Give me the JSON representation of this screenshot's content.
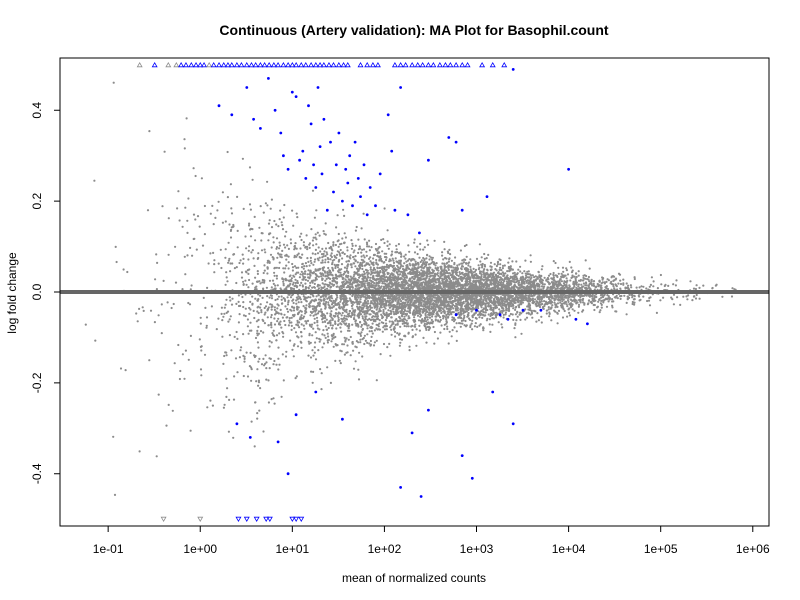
{
  "chart_data": {
    "type": "scatter",
    "title": "Continuous (Artery validation): MA Plot for Basophil.count",
    "xlabel": "mean of normalized counts",
    "ylabel": "log fold change",
    "x_scale": "log10",
    "xlim": [
      0.03,
      1500000
    ],
    "ylim": [
      -0.515,
      0.515
    ],
    "x_ticks": [
      {
        "value": 0.1,
        "label": "1e-01"
      },
      {
        "value": 1,
        "label": "1e+00"
      },
      {
        "value": 10,
        "label": "1e+01"
      },
      {
        "value": 100,
        "label": "1e+02"
      },
      {
        "value": 1000,
        "label": "1e+03"
      },
      {
        "value": 10000,
        "label": "1e+04"
      },
      {
        "value": 100000,
        "label": "1e+05"
      },
      {
        "value": 1000000,
        "label": "1e+06"
      }
    ],
    "y_ticks": [
      {
        "value": -0.4,
        "label": "-0.4"
      },
      {
        "value": -0.2,
        "label": "-0.2"
      },
      {
        "value": 0.0,
        "label": "0.0"
      },
      {
        "value": 0.2,
        "label": "0.2"
      },
      {
        "value": 0.4,
        "label": "0.4"
      }
    ],
    "reference_line": {
      "y": 0,
      "color": "#666666"
    },
    "colors": {
      "non_significant": "#8c8c8c",
      "significant": "#0000ff"
    },
    "series": [
      {
        "color": "#0000ff",
        "points": [
          [
            1.6,
            0.41
          ],
          [
            2.2,
            0.39
          ],
          [
            3.2,
            0.45
          ],
          [
            3.8,
            0.38
          ],
          [
            4.5,
            0.36
          ],
          [
            5.5,
            0.47
          ],
          [
            6.5,
            0.4
          ],
          [
            7.5,
            0.35
          ],
          [
            8.0,
            0.3
          ],
          [
            9.0,
            0.27
          ],
          [
            10.0,
            0.44
          ],
          [
            11.0,
            0.43
          ],
          [
            12.0,
            0.29
          ],
          [
            13.0,
            0.31
          ],
          [
            14.0,
            0.25
          ],
          [
            15.0,
            0.41
          ],
          [
            16.0,
            0.37
          ],
          [
            17.0,
            0.28
          ],
          [
            18.0,
            0.23
          ],
          [
            19.0,
            0.45
          ],
          [
            20.0,
            0.32
          ],
          [
            21.0,
            0.26
          ],
          [
            22.0,
            0.38
          ],
          [
            24.0,
            0.18
          ],
          [
            26.0,
            0.33
          ],
          [
            28.0,
            0.22
          ],
          [
            30.0,
            0.28
          ],
          [
            32.0,
            0.35
          ],
          [
            35.0,
            0.2
          ],
          [
            38.0,
            0.27
          ],
          [
            40.0,
            0.24
          ],
          [
            42.0,
            0.3
          ],
          [
            45.0,
            0.19
          ],
          [
            48.0,
            0.33
          ],
          [
            52.0,
            0.25
          ],
          [
            55.0,
            0.21
          ],
          [
            60.0,
            0.28
          ],
          [
            65.0,
            0.17
          ],
          [
            70.0,
            0.23
          ],
          [
            80.0,
            0.19
          ],
          [
            90.0,
            0.26
          ],
          [
            110.0,
            0.39
          ],
          [
            120.0,
            0.31
          ],
          [
            130.0,
            0.18
          ],
          [
            150.0,
            0.45
          ],
          [
            180.0,
            0.17
          ],
          [
            240.0,
            0.13
          ],
          [
            300.0,
            0.29
          ],
          [
            500.0,
            0.34
          ],
          [
            600.0,
            0.33
          ],
          [
            700.0,
            0.18
          ],
          [
            1300.0,
            0.21
          ],
          [
            2500.0,
            0.49
          ],
          [
            10000.0,
            0.27
          ],
          [
            600.0,
            -0.05
          ],
          [
            1000.0,
            -0.04
          ],
          [
            1800.0,
            -0.05
          ],
          [
            2200.0,
            -0.06
          ],
          [
            3200.0,
            -0.04
          ],
          [
            5000.0,
            -0.04
          ],
          [
            12000.0,
            -0.06
          ],
          [
            16000.0,
            -0.07
          ],
          [
            2.5,
            -0.29
          ],
          [
            3.5,
            -0.32
          ],
          [
            7.0,
            -0.33
          ],
          [
            9.0,
            -0.4
          ],
          [
            11.0,
            -0.27
          ],
          [
            18.0,
            -0.22
          ],
          [
            35.0,
            -0.28
          ],
          [
            150.0,
            -0.43
          ],
          [
            200.0,
            -0.31
          ],
          [
            250.0,
            -0.45
          ],
          [
            300.0,
            -0.26
          ],
          [
            700.0,
            -0.36
          ],
          [
            900.0,
            -0.41
          ],
          [
            1500.0,
            -0.22
          ],
          [
            2500.0,
            -0.29
          ]
        ]
      }
    ],
    "clipped_markers": {
      "top": [
        {
          "x": 0.22,
          "color": "#8c8c8c"
        },
        {
          "x": 0.32,
          "color": "#0000ff"
        },
        {
          "x": 0.45,
          "color": "#8c8c8c"
        },
        {
          "x": 0.55,
          "color": "#8c8c8c"
        },
        {
          "x": 0.62,
          "color": "#0000ff"
        },
        {
          "x": 0.7,
          "color": "#0000ff"
        },
        {
          "x": 0.8,
          "color": "#0000ff"
        },
        {
          "x": 0.9,
          "color": "#0000ff"
        },
        {
          "x": 1.0,
          "color": "#0000ff"
        },
        {
          "x": 1.1,
          "color": "#0000ff"
        },
        {
          "x": 1.25,
          "color": "#8c8c8c"
        },
        {
          "x": 1.4,
          "color": "#0000ff"
        },
        {
          "x": 1.6,
          "color": "#0000ff"
        },
        {
          "x": 1.8,
          "color": "#0000ff"
        },
        {
          "x": 2.0,
          "color": "#0000ff"
        },
        {
          "x": 2.2,
          "color": "#0000ff"
        },
        {
          "x": 2.5,
          "color": "#0000ff"
        },
        {
          "x": 2.8,
          "color": "#0000ff"
        },
        {
          "x": 3.2,
          "color": "#0000ff"
        },
        {
          "x": 3.6,
          "color": "#0000ff"
        },
        {
          "x": 4.0,
          "color": "#0000ff"
        },
        {
          "x": 4.5,
          "color": "#0000ff"
        },
        {
          "x": 5.0,
          "color": "#0000ff"
        },
        {
          "x": 5.6,
          "color": "#0000ff"
        },
        {
          "x": 6.3,
          "color": "#0000ff"
        },
        {
          "x": 7.0,
          "color": "#0000ff"
        },
        {
          "x": 8.0,
          "color": "#0000ff"
        },
        {
          "x": 9.0,
          "color": "#0000ff"
        },
        {
          "x": 10.0,
          "color": "#0000ff"
        },
        {
          "x": 11.0,
          "color": "#0000ff"
        },
        {
          "x": 12.5,
          "color": "#0000ff"
        },
        {
          "x": 14.0,
          "color": "#0000ff"
        },
        {
          "x": 16.0,
          "color": "#0000ff"
        },
        {
          "x": 18.0,
          "color": "#0000ff"
        },
        {
          "x": 20.0,
          "color": "#0000ff"
        },
        {
          "x": 22.0,
          "color": "#0000ff"
        },
        {
          "x": 25.0,
          "color": "#0000ff"
        },
        {
          "x": 28.0,
          "color": "#0000ff"
        },
        {
          "x": 32.0,
          "color": "#0000ff"
        },
        {
          "x": 36.0,
          "color": "#0000ff"
        },
        {
          "x": 40.0,
          "color": "#0000ff"
        },
        {
          "x": 55.0,
          "color": "#0000ff"
        },
        {
          "x": 65.0,
          "color": "#0000ff"
        },
        {
          "x": 75.0,
          "color": "#0000ff"
        },
        {
          "x": 85.0,
          "color": "#0000ff"
        },
        {
          "x": 130.0,
          "color": "#0000ff"
        },
        {
          "x": 150.0,
          "color": "#0000ff"
        },
        {
          "x": 170.0,
          "color": "#0000ff"
        },
        {
          "x": 200.0,
          "color": "#0000ff"
        },
        {
          "x": 230.0,
          "color": "#0000ff"
        },
        {
          "x": 260.0,
          "color": "#0000ff"
        },
        {
          "x": 300.0,
          "color": "#0000ff"
        },
        {
          "x": 340.0,
          "color": "#0000ff"
        },
        {
          "x": 400.0,
          "color": "#0000ff"
        },
        {
          "x": 460.0,
          "color": "#0000ff"
        },
        {
          "x": 520.0,
          "color": "#0000ff"
        },
        {
          "x": 600.0,
          "color": "#0000ff"
        },
        {
          "x": 700.0,
          "color": "#0000ff"
        },
        {
          "x": 800.0,
          "color": "#0000ff"
        },
        {
          "x": 1150.0,
          "color": "#0000ff"
        },
        {
          "x": 1500.0,
          "color": "#0000ff"
        },
        {
          "x": 2000.0,
          "color": "#0000ff"
        }
      ],
      "bottom": [
        {
          "x": 0.4,
          "color": "#8c8c8c"
        },
        {
          "x": 1.0,
          "color": "#8c8c8c"
        },
        {
          "x": 2.6,
          "color": "#0000ff"
        },
        {
          "x": 3.2,
          "color": "#0000ff"
        },
        {
          "x": 4.1,
          "color": "#0000ff"
        },
        {
          "x": 5.2,
          "color": "#0000ff"
        },
        {
          "x": 5.7,
          "color": "#0000ff"
        },
        {
          "x": 10.0,
          "color": "#0000ff"
        },
        {
          "x": 11.0,
          "color": "#0000ff"
        },
        {
          "x": 12.5,
          "color": "#0000ff"
        }
      ]
    }
  }
}
